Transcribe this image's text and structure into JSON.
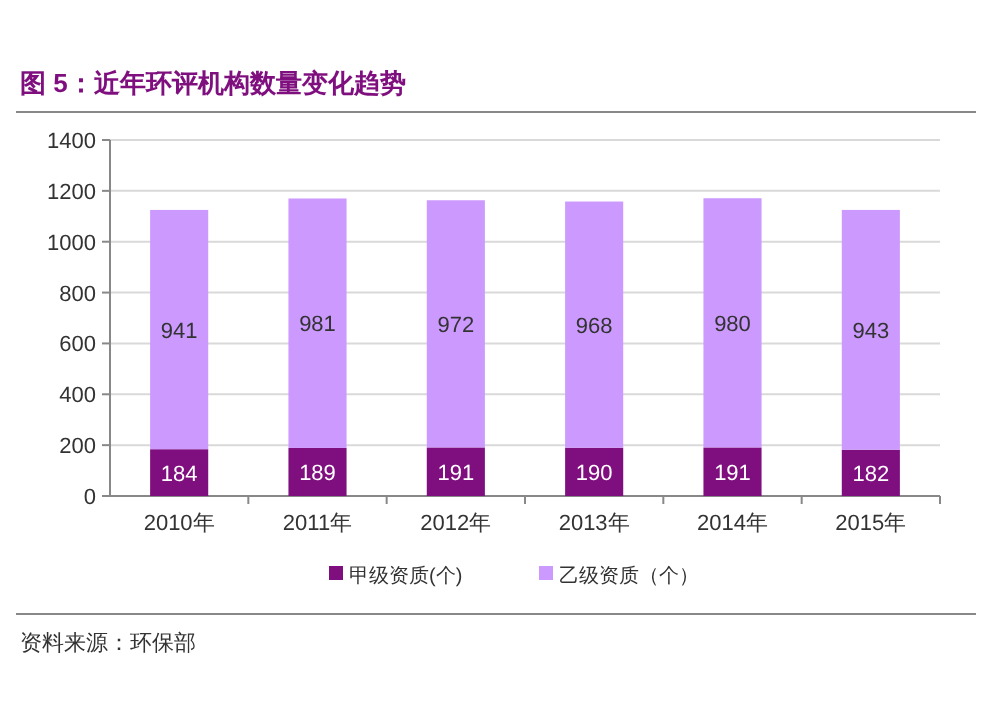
{
  "chart_data": {
    "type": "bar",
    "title": "图 5：近年环评机构数量变化趋势",
    "categories": [
      "2010年",
      "2011年",
      "2012年",
      "2013年",
      "2014年",
      "2015年"
    ],
    "series": [
      {
        "name": "甲级资质(个)",
        "color": "#7f0f7e",
        "values": [
          184,
          189,
          191,
          190,
          191,
          182
        ]
      },
      {
        "name": "乙级资质（个）",
        "color": "#cc99ff",
        "values": [
          941,
          981,
          972,
          968,
          980,
          943
        ]
      }
    ],
    "stacked": true,
    "ylim": [
      0,
      1400
    ],
    "yticks": [
      0,
      200,
      400,
      600,
      800,
      1000,
      1200,
      1400
    ],
    "grid": "y",
    "legend": "bottom",
    "data_labels": true,
    "annotations": [
      "资料来源：环保部"
    ]
  }
}
